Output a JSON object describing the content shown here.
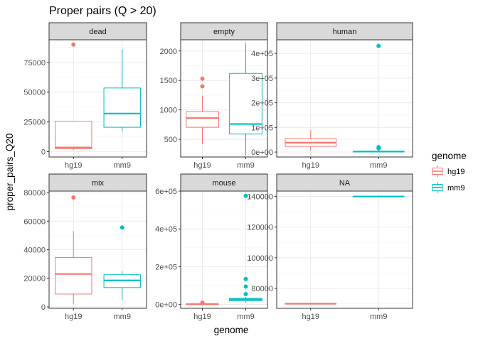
{
  "chart_data": {
    "type": "boxplot",
    "title": "Proper pairs (Q > 20)",
    "xlabel": "genome",
    "ylabel": "proper_pairs_Q20",
    "legend": {
      "title": "genome",
      "placement": "right",
      "entries": [
        {
          "name": "hg19",
          "color": "#F8766D"
        },
        {
          "name": "mm9",
          "color": "#00BFC4"
        }
      ]
    },
    "categories": [
      "hg19",
      "mm9"
    ],
    "colors": {
      "hg19": "#F8766D",
      "mm9": "#00BFC4"
    },
    "grid": true,
    "facets": [
      {
        "name": "dead",
        "ylim": [
          -4500,
          94000
        ],
        "yticks": [
          0,
          25000,
          50000,
          75000
        ],
        "yticklabels": [
          "0",
          "25000",
          "50000",
          "75000"
        ],
        "boxes": [
          {
            "genome": "hg19",
            "min": 1500,
            "q1": 2500,
            "median": 3500,
            "q3": 25500,
            "max": 25500,
            "outliers": [
              90000
            ]
          },
          {
            "genome": "mm9",
            "min": 17000,
            "q1": 20500,
            "median": 32000,
            "q3": 53500,
            "max": 86000,
            "outliers": []
          }
        ]
      },
      {
        "name": "empty",
        "ylim": [
          200,
          2190
        ],
        "yticks": [
          500,
          1000,
          1500,
          2000
        ],
        "yticklabels": [
          "500",
          "1000",
          "1500",
          "2000"
        ],
        "boxes": [
          {
            "genome": "hg19",
            "min": 420,
            "q1": 705,
            "median": 860,
            "q3": 970,
            "max": 1240,
            "outliers": [
              1400,
              1530
            ]
          },
          {
            "genome": "mm9",
            "min": 230,
            "q1": 590,
            "median": 760,
            "q3": 1620,
            "max": 2130,
            "outliers": []
          }
        ]
      },
      {
        "name": "human",
        "ylim": [
          -20000,
          455000
        ],
        "yticks": [
          0,
          100000,
          200000,
          300000,
          400000
        ],
        "yticklabels": [
          "0e+00",
          "1e+05",
          "2e+05",
          "3e+05",
          "4e+05"
        ],
        "boxes": [
          {
            "genome": "hg19",
            "min": 5000,
            "q1": 23000,
            "median": 38000,
            "q3": 54000,
            "max": 90000,
            "outliers": []
          },
          {
            "genome": "mm9",
            "min": 0,
            "q1": 500,
            "median": 2000,
            "q3": 3500,
            "max": 6000,
            "outliers": [
              15000,
              20000,
              430000
            ]
          }
        ]
      },
      {
        "name": "mix",
        "ylim": [
          -1000,
          81000
        ],
        "yticks": [
          0,
          20000,
          40000,
          60000,
          80000
        ],
        "yticklabels": [
          "0",
          "20000",
          "40000",
          "60000",
          "80000"
        ],
        "boxes": [
          {
            "genome": "hg19",
            "min": 2000,
            "q1": 9000,
            "median": 23000,
            "q3": 34500,
            "max": 53000,
            "outliers": [
              76500
            ]
          },
          {
            "genome": "mm9",
            "min": 5000,
            "q1": 13500,
            "median": 18500,
            "q3": 22500,
            "max": 25000,
            "outliers": [
              55500
            ]
          }
        ]
      },
      {
        "name": "mouse",
        "ylim": [
          -20000,
          600000
        ],
        "yticks": [
          0,
          200000,
          400000,
          600000
        ],
        "yticklabels": [
          "0e+00",
          "2e+05",
          "4e+05",
          "6e+05"
        ],
        "boxes": [
          {
            "genome": "hg19",
            "min": 0,
            "q1": 1000,
            "median": 2000,
            "q3": 3000,
            "max": 5000,
            "outliers": [
              10000
            ]
          },
          {
            "genome": "mm9",
            "min": 12000,
            "q1": 20000,
            "median": 27000,
            "q3": 33000,
            "max": 40000,
            "outliers": [
              55000,
              95000,
              135000,
              575000
            ]
          }
        ]
      },
      {
        "name": "NA",
        "ylim": [
          67000,
          143500
        ],
        "yticks": [
          80000,
          100000,
          120000,
          140000
        ],
        "yticklabels": [
          "80000",
          "100000",
          "120000",
          "140000"
        ],
        "boxes": [
          {
            "genome": "hg19",
            "min": 70000,
            "q1": 70000,
            "median": 70000,
            "q3": 70000,
            "max": 70000,
            "outliers": []
          },
          {
            "genome": "mm9",
            "min": 140000,
            "q1": 140000,
            "median": 140000,
            "q3": 140000,
            "max": 140000,
            "outliers": []
          }
        ]
      }
    ]
  }
}
